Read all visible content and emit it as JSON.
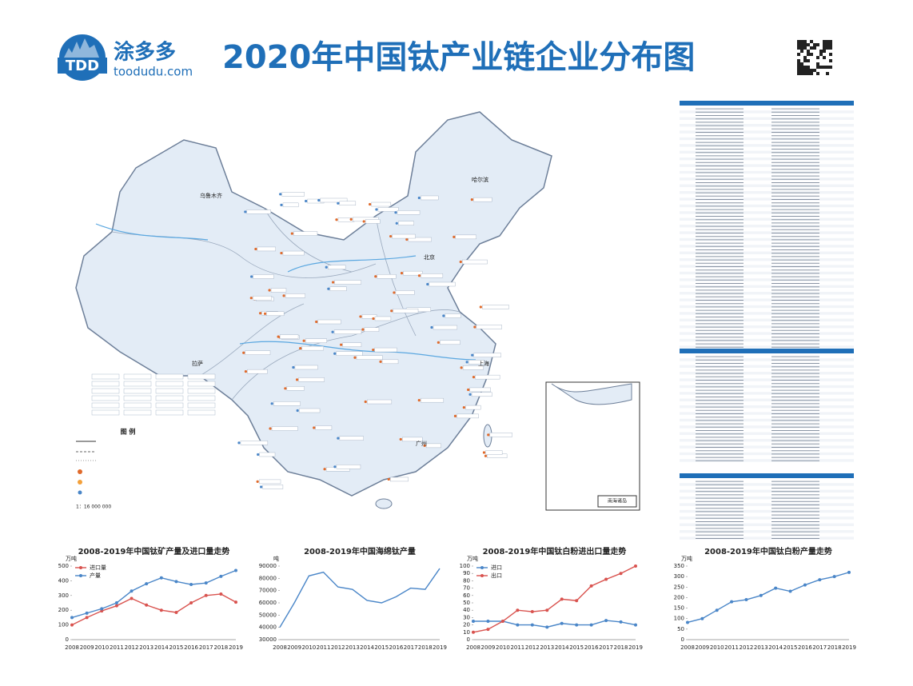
{
  "header": {
    "logo": "TDD",
    "brand": "涂多多",
    "site": "toodudu.com",
    "title": "2020年中国钛产业链企业分布图"
  },
  "map": {
    "labels": [
      "乌鲁木齐",
      "拉萨",
      "哈尔滨",
      "北京",
      "上海",
      "广州"
    ],
    "legend_title": "图  例",
    "scale": "1：16 000 000",
    "inset_title": "南海诸岛"
  },
  "chart_data": [
    {
      "type": "line",
      "title": "2008-2019年中国钛矿产量及进口量走势",
      "unit": "万吨",
      "categories": [
        "2008",
        "2009",
        "2010",
        "2011",
        "2012",
        "2013",
        "2014",
        "2015",
        "2016",
        "2017",
        "2018",
        "2019"
      ],
      "series": [
        {
          "name": "进口量",
          "color": "#d9534f",
          "values": [
            100,
            150,
            195,
            230,
            280,
            235,
            200,
            185,
            250,
            300,
            310,
            255
          ]
        },
        {
          "name": "产量",
          "color": "#4a86c8",
          "values": [
            150,
            180,
            210,
            250,
            330,
            380,
            420,
            395,
            375,
            385,
            430,
            470
          ]
        }
      ],
      "ylim": [
        0,
        500
      ],
      "yticks": [
        0,
        100,
        200,
        300,
        400,
        500
      ],
      "markers": true,
      "legend": "upper left"
    },
    {
      "type": "line",
      "title": "2008-2019年中国海绵钛产量",
      "unit": "吨",
      "categories": [
        "2008",
        "2009",
        "2010",
        "2011",
        "2012",
        "2013",
        "2014",
        "2015",
        "2016",
        "2017",
        "2018",
        "2019"
      ],
      "color": "#4a86c8",
      "values": [
        40000,
        60000,
        82000,
        85000,
        73000,
        71000,
        62000,
        60000,
        65000,
        72000,
        71000,
        88000
      ],
      "ylim": [
        30000,
        90000
      ],
      "yticks": [
        30000,
        40000,
        50000,
        60000,
        70000,
        80000,
        90000
      ],
      "markers": false
    },
    {
      "type": "line",
      "title": "2008-2019年中国钛白粉进出口量走势",
      "unit": "万吨",
      "categories": [
        "2008",
        "2009",
        "2010",
        "2011",
        "2012",
        "2013",
        "2014",
        "2015",
        "2016",
        "2017",
        "2018",
        "2019"
      ],
      "series": [
        {
          "name": "进口",
          "color": "#4a86c8",
          "values": [
            25,
            25,
            25,
            20,
            20,
            17,
            22,
            20,
            20,
            26,
            24,
            20
          ]
        },
        {
          "name": "出口",
          "color": "#d9534f",
          "values": [
            10,
            14,
            25,
            40,
            38,
            40,
            55,
            53,
            73,
            82,
            90,
            100
          ]
        }
      ],
      "ylim": [
        0,
        100
      ],
      "yticks": [
        0,
        10,
        20,
        30,
        40,
        50,
        60,
        70,
        80,
        90,
        100
      ],
      "markers": true,
      "legend": "upper left"
    },
    {
      "type": "line",
      "title": "2008-2019年中国钛白粉产量走势",
      "unit": "万吨",
      "categories": [
        "2008",
        "2009",
        "2010",
        "2011",
        "2012",
        "2013",
        "2014",
        "2015",
        "2016",
        "2017",
        "2018",
        "2019"
      ],
      "color": "#4a86c8",
      "values": [
        82,
        100,
        140,
        180,
        190,
        210,
        245,
        230,
        260,
        285,
        300,
        320
      ],
      "ylim": [
        0,
        350
      ],
      "yticks": [
        0,
        50,
        100,
        150,
        200,
        250,
        300,
        350
      ],
      "markers": true
    }
  ]
}
